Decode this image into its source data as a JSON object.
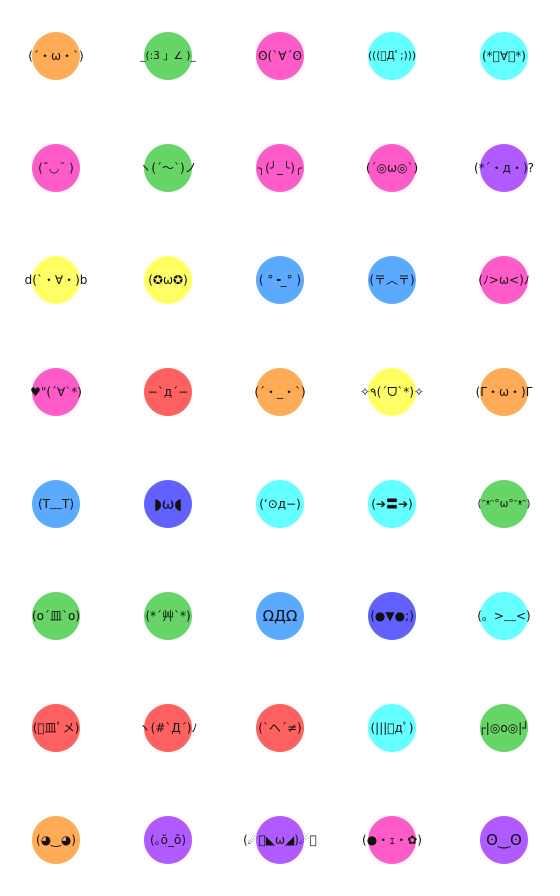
{
  "palette": {
    "orange": "#FFAA55",
    "green": "#66D466",
    "pink": "#FF5BC8",
    "cyan": "#66FFFF",
    "purple": "#B05BFF",
    "yellow": "#FFFF66",
    "blue": "#5BAAFF",
    "red": "#FF6060",
    "indigo": "#6060FF"
  },
  "rows": [
    [
      {
        "icon": "emoticon-sticker",
        "color": "orange",
        "face": "(´・ω・`)"
      },
      {
        "icon": "emoticon-sticker",
        "color": "green",
        "face": "_(:3 」∠ )_"
      },
      {
        "icon": "emoticon-sticker",
        "color": "pink",
        "face": "ʘ(`∀´ʘ"
      },
      {
        "icon": "emoticon-sticker",
        "color": "cyan",
        "face": "(((ﾟДﾟ;)))"
      },
      {
        "icon": "emoticon-sticker",
        "color": "cyan",
        "face": "(*ﾟ∀ﾟ*)"
      }
    ],
    [
      {
        "icon": "emoticon-sticker",
        "color": "pink",
        "face": "(¯◡¯ )"
      },
      {
        "icon": "emoticon-sticker",
        "color": "green",
        "face": "ヽ(´～`)ノ"
      },
      {
        "icon": "emoticon-sticker",
        "color": "pink",
        "face": "╮(╯_╰)╭"
      },
      {
        "icon": "emoticon-sticker",
        "color": "pink",
        "face": "(´◎ω◎`)"
      },
      {
        "icon": "emoticon-sticker",
        "color": "purple",
        "face": "(*´・д・)?"
      }
    ],
    [
      {
        "icon": "emoticon-sticker",
        "color": "yellow",
        "face": "d(`・∀・)b"
      },
      {
        "icon": "emoticon-sticker",
        "color": "yellow",
        "face": "(✪ω✪)"
      },
      {
        "icon": "emoticon-sticker",
        "color": "blue",
        "face": "( °╺_° )"
      },
      {
        "icon": "emoticon-sticker",
        "color": "blue",
        "face": "(〒︿〒)"
      },
      {
        "icon": "emoticon-sticker",
        "color": "pink",
        "face": "(ﾉ>ω<)ﾉ"
      }
    ],
    [
      {
        "icon": "emoticon-sticker",
        "color": "pink",
        "face": "♥\"(´∀`*)"
      },
      {
        "icon": "emoticon-sticker",
        "color": "red",
        "face": "−`д´−"
      },
      {
        "icon": "emoticon-sticker",
        "color": "orange",
        "face": "(´・_・`)"
      },
      {
        "icon": "emoticon-sticker",
        "color": "yellow",
        "face": "✧٩(ˊᗜˋ*)✧"
      },
      {
        "icon": "emoticon-sticker",
        "color": "orange",
        "face": "(Γ・ω・)Γ"
      }
    ],
    [
      {
        "icon": "emoticon-sticker",
        "color": "blue",
        "face": "(T﹏T)"
      },
      {
        "icon": "emoticon-sticker",
        "color": "indigo",
        "face": "◗ω◖"
      },
      {
        "icon": "emoticon-sticker",
        "color": "cyan",
        "face": "(‘⊙д−)"
      },
      {
        "icon": "emoticon-sticker",
        "color": "cyan",
        "face": "(➔〓➔)"
      },
      {
        "icon": "emoticon-sticker",
        "color": "green",
        "face": "(ᵔᵜᵔ°ω°ᵔᵜᵔ)"
      }
    ],
    [
      {
        "icon": "emoticon-sticker",
        "color": "green",
        "face": "(o´皿`o)"
      },
      {
        "icon": "emoticon-sticker",
        "color": "green",
        "face": "(*´艸`*)"
      },
      {
        "icon": "emoticon-sticker",
        "color": "blue",
        "face": "ΩДΩ"
      },
      {
        "icon": "emoticon-sticker",
        "color": "indigo",
        "face": "(●▼●;)"
      },
      {
        "icon": "emoticon-sticker",
        "color": "cyan",
        "face": "(。>﹏<)"
      }
    ],
    [
      {
        "icon": "emoticon-sticker",
        "color": "red",
        "face": "(ﾟ皿ﾟメ)"
      },
      {
        "icon": "emoticon-sticker",
        "color": "red",
        "face": "ヽ(#`Д´)ﾉ"
      },
      {
        "icon": "emoticon-sticker",
        "color": "red",
        "face": "(`へ´≠)"
      },
      {
        "icon": "emoticon-sticker",
        "color": "cyan",
        "face": "(|||ﾟдﾟ)"
      },
      {
        "icon": "emoticon-sticker",
        "color": "green",
        "face": "┌|◎o◎|┘"
      }
    ],
    [
      {
        "icon": "emoticon-sticker",
        "color": "orange",
        "face": "(◕‿◕)"
      },
      {
        "icon": "emoticon-sticker",
        "color": "purple",
        "face": "(｡ŏ_ŏ)"
      },
      {
        "icon": "emoticon-sticker",
        "color": "purple",
        "face": "(☄ฺ◣ω◢)☄ฺ"
      },
      {
        "icon": "emoticon-sticker",
        "color": "pink",
        "face": "(●・ｪ・✿)"
      },
      {
        "icon": "emoticon-sticker",
        "color": "purple",
        "face": "ʘ‿ʘ"
      }
    ]
  ]
}
